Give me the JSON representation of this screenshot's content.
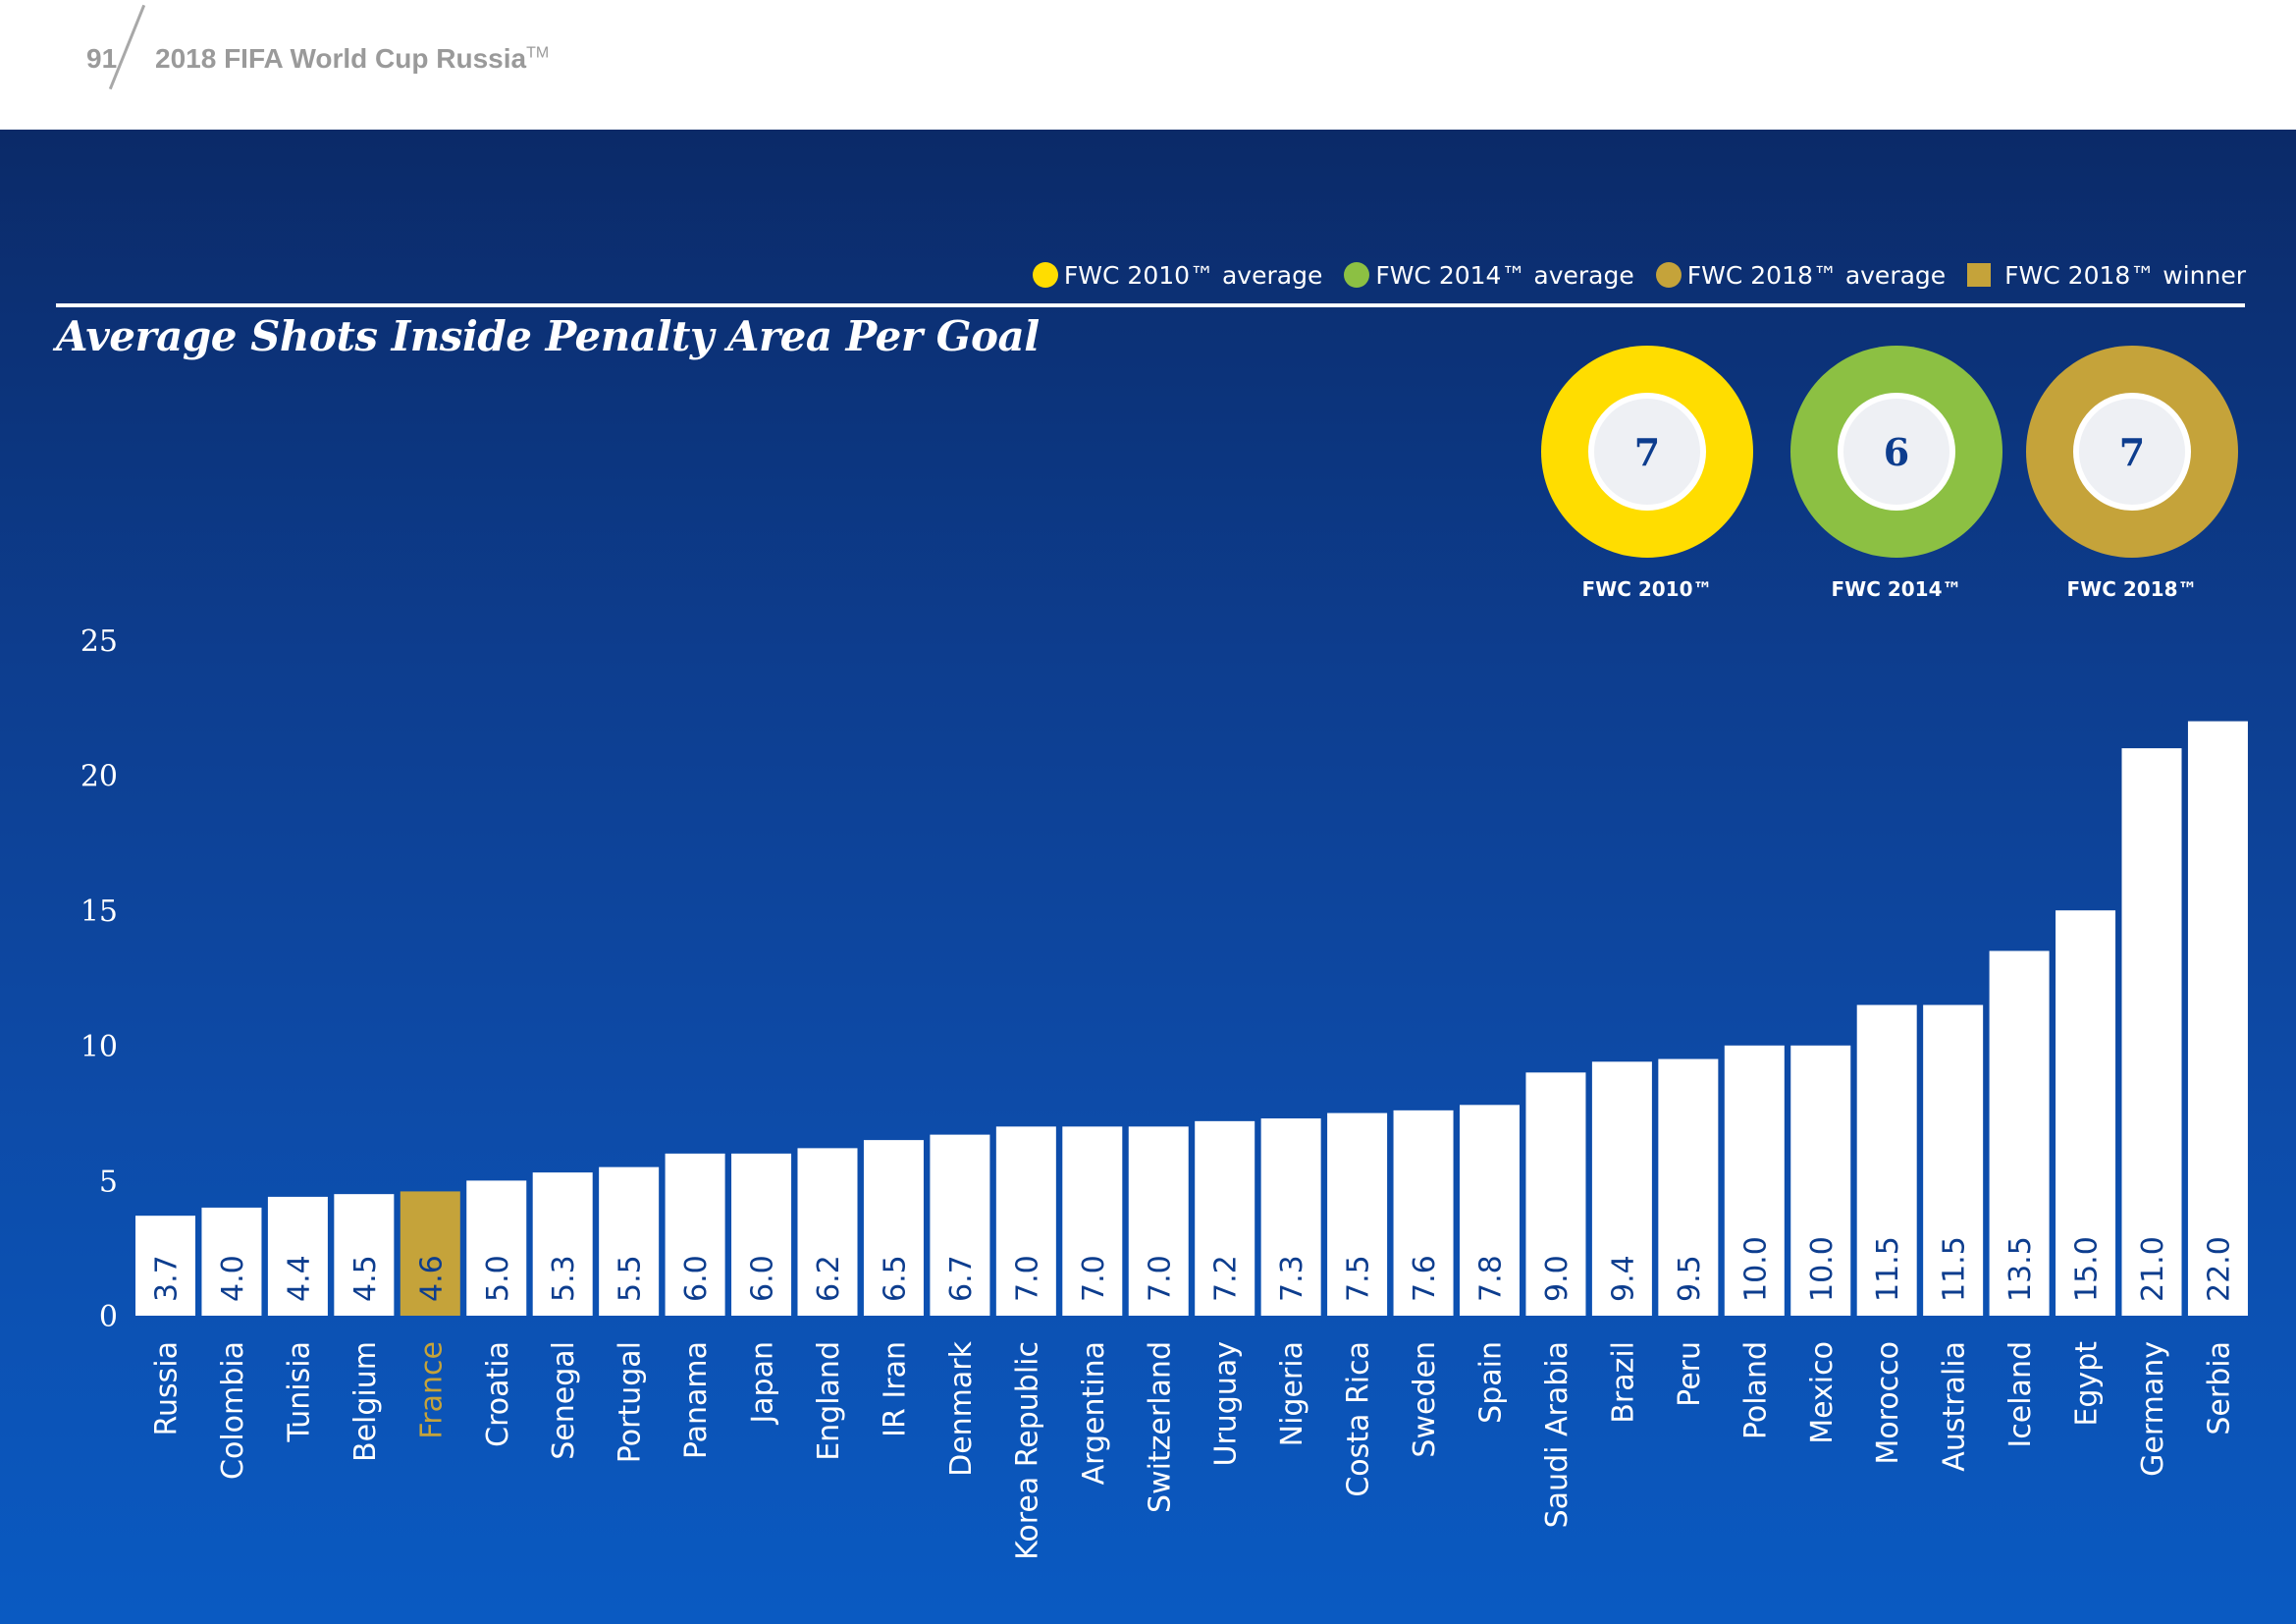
{
  "header": {
    "page_number": "91",
    "document_title": "2018 FIFA World Cup Russia",
    "trademark": "TM"
  },
  "legend": [
    {
      "label": "FWC 2010™ average",
      "color": "#ffdd00",
      "shape": "circle"
    },
    {
      "label": "FWC 2014™ average",
      "color": "#8cc043",
      "shape": "circle"
    },
    {
      "label": "FWC 2018™ average",
      "color": "#c5a33a",
      "shape": "circle"
    },
    {
      "label": "FWC 2018™ winner",
      "color": "#c5a33a",
      "shape": "square"
    }
  ],
  "averages": [
    {
      "label": "FWC 2010™",
      "value": "7",
      "color": "#ffdd00"
    },
    {
      "label": "FWC 2014™",
      "value": "6",
      "color": "#8cc043"
    },
    {
      "label": "FWC 2018™",
      "value": "7",
      "color": "#c5a33a"
    }
  ],
  "colors": {
    "bar": "#ffffff",
    "winner": "#c5a33a",
    "bar_label": "#0d3d8e",
    "axis_text": "#ffffff"
  },
  "chart_data": {
    "type": "bar",
    "title": "Average Shots Inside Penalty Area Per Goal",
    "xlabel": "",
    "ylabel": "",
    "ylim": [
      0,
      25
    ],
    "yticks": [
      0,
      5,
      10,
      15,
      20,
      25
    ],
    "grid": false,
    "highlight": "France",
    "categories": [
      "Russia",
      "Colombia",
      "Tunisia",
      "Belgium",
      "France",
      "Croatia",
      "Senegal",
      "Portugal",
      "Panama",
      "Japan",
      "England",
      "IR Iran",
      "Denmark",
      "Korea Republic",
      "Argentina",
      "Switzerland",
      "Uruguay",
      "Nigeria",
      "Costa Rica",
      "Sweden",
      "Spain",
      "Saudi Arabia",
      "Brazil",
      "Peru",
      "Poland",
      "Mexico",
      "Morocco",
      "Australia",
      "Iceland",
      "Egypt",
      "Germany",
      "Serbia"
    ],
    "values": [
      3.7,
      4.0,
      4.4,
      4.5,
      4.6,
      5.0,
      5.3,
      5.5,
      6.0,
      6.0,
      6.2,
      6.5,
      6.7,
      7.0,
      7.0,
      7.0,
      7.2,
      7.3,
      7.5,
      7.6,
      7.8,
      9.0,
      9.4,
      9.5,
      10.0,
      10.0,
      11.5,
      11.5,
      13.5,
      15.0,
      21.0,
      22.0
    ],
    "labels": [
      "3.7",
      "4.0",
      "4.4",
      "4.5",
      "4.6",
      "5.0",
      "5.3",
      "5.5",
      "6.0",
      "6.0",
      "6.2",
      "6.5",
      "6.7",
      "7.0",
      "7.0",
      "7.0",
      "7.2",
      "7.3",
      "7.5",
      "7.6",
      "7.8",
      "9.0",
      "9.4",
      "9.5",
      "10.0",
      "10.0",
      "11.5",
      "11.5",
      "13.5",
      "15.0",
      "21.0",
      "22.0"
    ]
  }
}
